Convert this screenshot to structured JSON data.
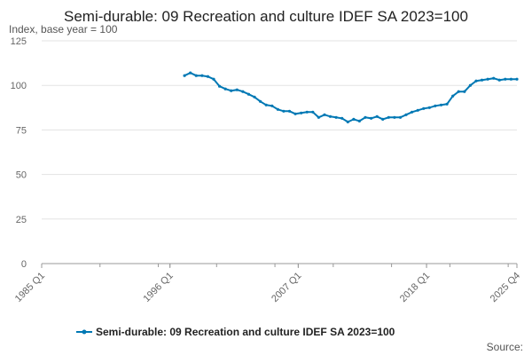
{
  "chart_data": {
    "type": "line",
    "title": "Semi-durable: 09 Recreation and culture IDEF SA 2023=100",
    "subtitle": "Index, base year = 100",
    "ylabel": "",
    "xlabel": "",
    "ylim": [
      0,
      125
    ],
    "y_ticks": [
      "0",
      "25",
      "50",
      "75",
      "100",
      "125"
    ],
    "x_ticks": [
      "1985 Q1",
      "1996 Q1",
      "2007 Q1",
      "2018 Q1",
      "2025 Q4"
    ],
    "x_range": [
      "1985 Q1",
      "2025 Q4"
    ],
    "grid": true,
    "legend_position": "bottom",
    "series_color": "#0078b4",
    "source_label": "Source:",
    "series": [
      {
        "name": "Semi-durable: 09 Recreation and culture IDEF SA 2023=100",
        "points": [
          [
            "1997 Q2",
            105.5
          ],
          [
            "1997 Q4",
            107
          ],
          [
            "1998 Q2",
            105.5
          ],
          [
            "1998 Q4",
            105.5
          ],
          [
            "1999 Q2",
            105
          ],
          [
            "1999 Q4",
            103.5
          ],
          [
            "2000 Q2",
            99.5
          ],
          [
            "2000 Q4",
            98
          ],
          [
            "2001 Q2",
            97
          ],
          [
            "2001 Q4",
            97.5
          ],
          [
            "2002 Q2",
            96.5
          ],
          [
            "2002 Q4",
            95
          ],
          [
            "2003 Q2",
            93.5
          ],
          [
            "2003 Q4",
            91
          ],
          [
            "2004 Q2",
            89
          ],
          [
            "2004 Q4",
            88.5
          ],
          [
            "2005 Q2",
            86.5
          ],
          [
            "2005 Q4",
            85.5
          ],
          [
            "2006 Q2",
            85.5
          ],
          [
            "2006 Q4",
            84
          ],
          [
            "2007 Q2",
            84.5
          ],
          [
            "2007 Q4",
            85
          ],
          [
            "2008 Q2",
            85
          ],
          [
            "2008 Q4",
            82
          ],
          [
            "2009 Q2",
            83.5
          ],
          [
            "2009 Q4",
            82.5
          ],
          [
            "2010 Q2",
            82
          ],
          [
            "2010 Q4",
            81.5
          ],
          [
            "2011 Q2",
            79.5
          ],
          [
            "2011 Q4",
            81
          ],
          [
            "2012 Q2",
            80
          ],
          [
            "2012 Q4",
            82
          ],
          [
            "2013 Q2",
            81.5
          ],
          [
            "2013 Q4",
            82.5
          ],
          [
            "2014 Q2",
            81
          ],
          [
            "2014 Q4",
            82
          ],
          [
            "2015 Q2",
            82
          ],
          [
            "2015 Q4",
            82
          ],
          [
            "2016 Q2",
            83.5
          ],
          [
            "2016 Q4",
            85
          ],
          [
            "2017 Q2",
            86
          ],
          [
            "2017 Q4",
            87
          ],
          [
            "2018 Q2",
            87.5
          ],
          [
            "2018 Q4",
            88.5
          ],
          [
            "2019 Q2",
            89
          ],
          [
            "2019 Q4",
            89.5
          ],
          [
            "2020 Q2",
            94
          ],
          [
            "2020 Q4",
            96.5
          ],
          [
            "2021 Q2",
            96.5
          ],
          [
            "2021 Q4",
            100
          ],
          [
            "2022 Q2",
            102.5
          ],
          [
            "2022 Q4",
            103
          ],
          [
            "2023 Q2",
            103.5
          ],
          [
            "2023 Q4",
            104
          ],
          [
            "2024 Q2",
            103
          ],
          [
            "2024 Q4",
            103.5
          ],
          [
            "2025 Q2",
            103.5
          ],
          [
            "2025 Q4",
            103.5
          ]
        ]
      }
    ]
  }
}
